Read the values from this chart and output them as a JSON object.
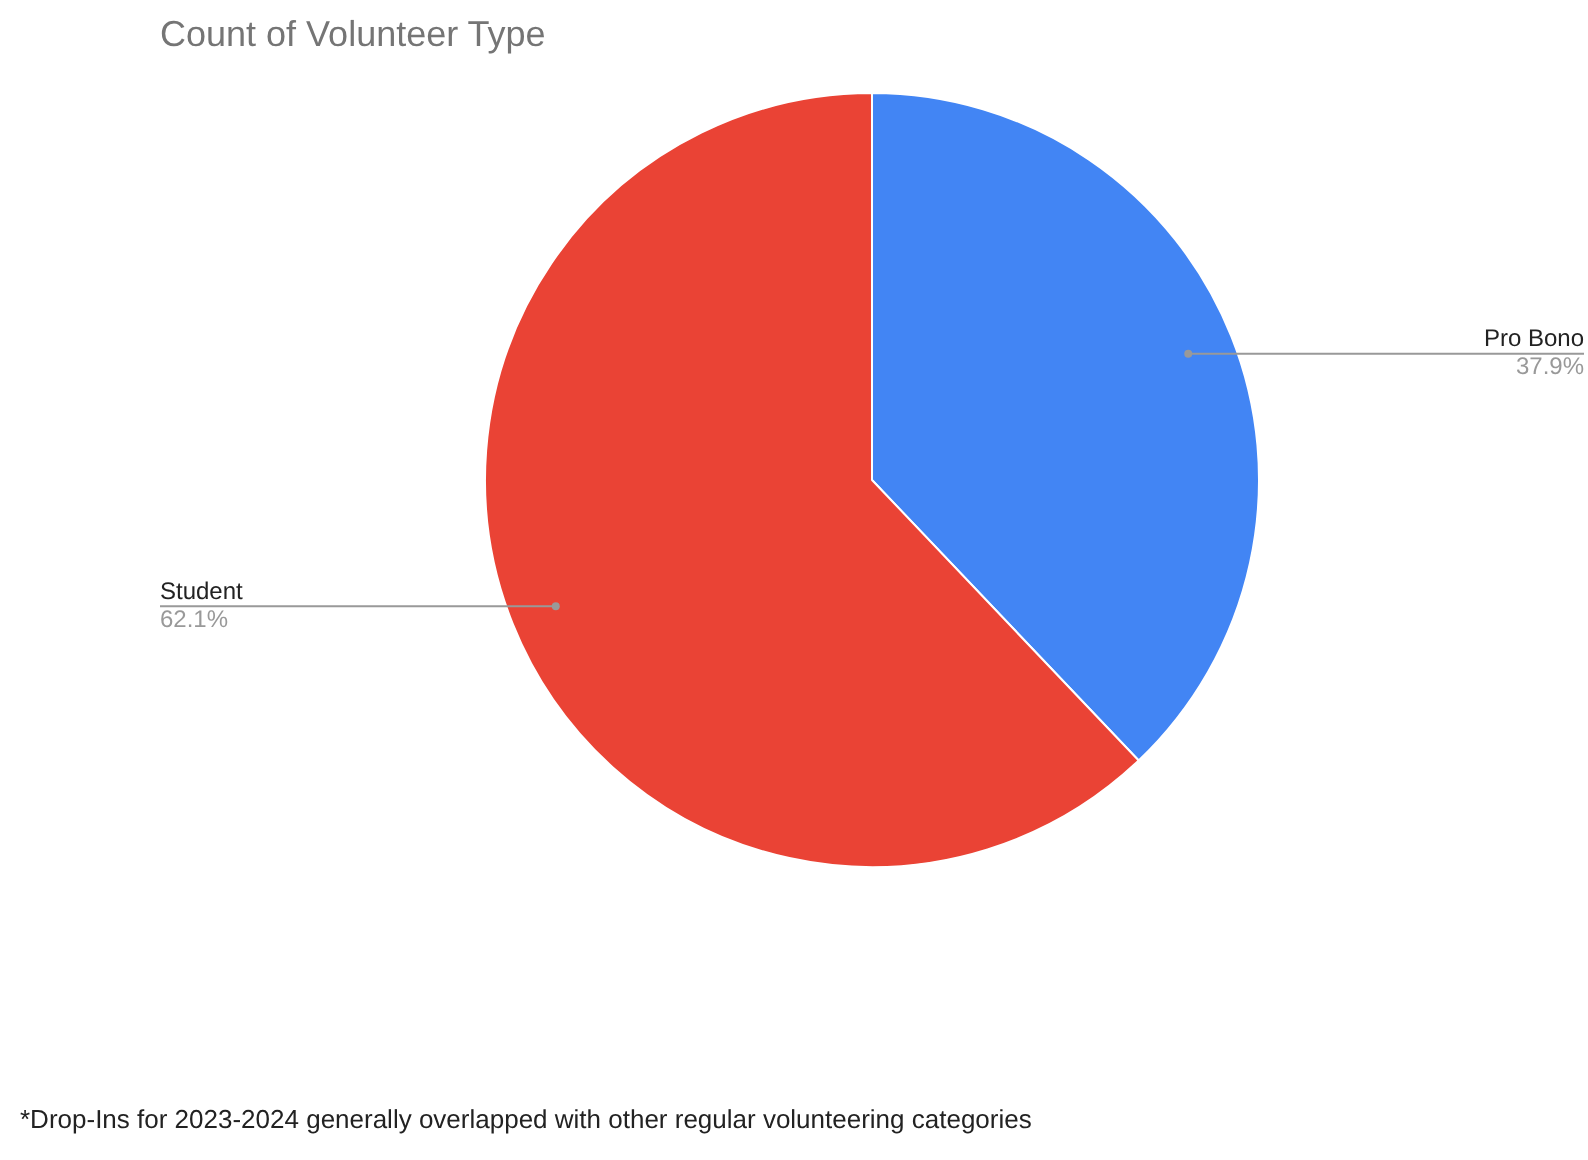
{
  "chart_data": {
    "type": "pie",
    "title": "Count of Volunteer Type",
    "categories": [
      "Pro Bono",
      "Student"
    ],
    "values": [
      37.9,
      62.1
    ],
    "colors": [
      "#4285f4",
      "#ea4335"
    ],
    "value_labels": [
      "37.9%",
      "62.1%"
    ],
    "legend": false,
    "annotations": [
      "*Drop-Ins for 2023-2024 generally overlapped with other regular volunteering categories"
    ]
  }
}
